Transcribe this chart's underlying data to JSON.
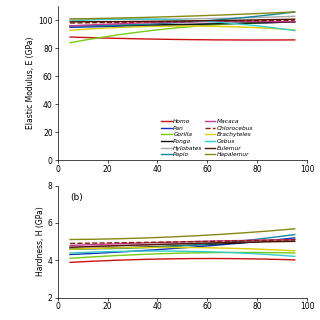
{
  "title_b": "(b)",
  "ylabel_a": "Elastic Modulus, E (GPa)",
  "ylabel_b": "Hardness, H (GPa)",
  "xlim": [
    0,
    100
  ],
  "ylim_a": [
    0,
    110
  ],
  "ylim_b": [
    2,
    8
  ],
  "yticks_a": [
    0,
    20,
    40,
    60,
    80,
    100
  ],
  "yticks_b": [
    2,
    4,
    6,
    8
  ],
  "xticks": [
    0,
    20,
    40,
    60,
    80,
    100
  ],
  "x": [
    5,
    30,
    55,
    80,
    95
  ],
  "species": {
    "Homo": {
      "color": "#cc1111",
      "dashed": false,
      "E": [
        88,
        87,
        86,
        86,
        86
      ],
      "H": [
        3.9,
        4.0,
        4.1,
        4.1,
        4.0
      ]
    },
    "Pan": {
      "color": "#1133bb",
      "dashed": false,
      "E": [
        95,
        96,
        97,
        98,
        99
      ],
      "H": [
        4.3,
        4.5,
        4.7,
        5.0,
        5.2
      ]
    },
    "Gorilla": {
      "color": "#77cc11",
      "dashed": false,
      "E": [
        84,
        91,
        96,
        98,
        99
      ],
      "H": [
        4.1,
        4.3,
        4.4,
        4.4,
        4.4
      ]
    },
    "Pongo": {
      "color": "#111111",
      "dashed": false,
      "E": [
        96,
        97,
        97,
        98,
        99
      ],
      "H": [
        4.6,
        4.7,
        4.8,
        5.0,
        5.1
      ]
    },
    "Hylobates": {
      "color": "#aaaaaa",
      "dashed": false,
      "E": [
        101,
        101,
        101,
        102,
        103
      ],
      "H": [
        4.7,
        4.8,
        4.9,
        5.0,
        5.1
      ]
    },
    "Papio": {
      "color": "#118899",
      "dashed": false,
      "E": [
        96,
        97,
        99,
        103,
        106
      ],
      "H": [
        4.6,
        4.7,
        4.8,
        5.1,
        5.4
      ]
    },
    "Macaca": {
      "color": "#cc3399",
      "dashed": false,
      "E": [
        96,
        98,
        99,
        99,
        99
      ],
      "H": [
        4.8,
        4.9,
        5.0,
        5.1,
        5.1
      ]
    },
    "Chlorocebus": {
      "color": "#882200",
      "dashed": true,
      "E": [
        98,
        99,
        99,
        100,
        100
      ],
      "H": [
        4.9,
        4.95,
        5.0,
        5.05,
        5.1
      ]
    },
    "Brachyteles": {
      "color": "#ddcc00",
      "dashed": false,
      "E": [
        93,
        95,
        96,
        95,
        93
      ],
      "H": [
        4.6,
        4.65,
        4.7,
        4.6,
        4.5
      ]
    },
    "Cebus": {
      "color": "#33cccc",
      "dashed": false,
      "E": [
        100,
        100,
        100,
        97,
        92
      ],
      "H": [
        4.4,
        4.45,
        4.5,
        4.35,
        4.2
      ]
    },
    "Eulemur": {
      "color": "#551100",
      "dashed": false,
      "E": [
        99,
        99,
        100,
        100,
        101
      ],
      "H": [
        4.7,
        4.8,
        4.9,
        5.0,
        5.0
      ]
    },
    "Hapalemur": {
      "color": "#888811",
      "dashed": false,
      "E": [
        101,
        102,
        103,
        105,
        106
      ],
      "H": [
        5.1,
        5.2,
        5.3,
        5.5,
        5.7
      ]
    }
  },
  "legend_order": [
    "Homo",
    "Pan",
    "Gorilla",
    "Pongo",
    "Hylobates",
    "Papio",
    "Macaca",
    "Chlorocebus",
    "Brachyteles",
    "Cebus",
    "Eulemur",
    "Hapalemur"
  ],
  "bg_color": "#ffffff"
}
